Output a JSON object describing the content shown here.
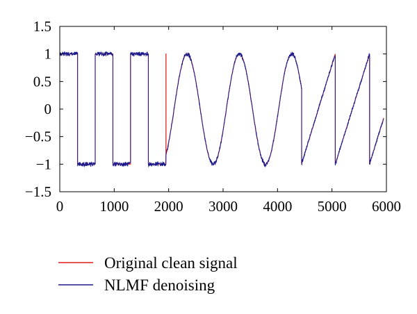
{
  "chart_data": {
    "type": "line",
    "title": "",
    "xlabel": "",
    "ylabel": "",
    "xlim": [
      0,
      6000
    ],
    "ylim": [
      -1.5,
      1.5
    ],
    "xticks": [
      0,
      1000,
      2000,
      3000,
      4000,
      5000,
      6000
    ],
    "yticks": [
      1.5,
      1,
      0.5,
      0,
      -0.5,
      -1,
      -1.5
    ],
    "xtick_labels": [
      "0",
      "1000",
      "2000",
      "3000",
      "4000",
      "5000",
      "6000"
    ],
    "ytick_labels": [
      "1.5",
      "1",
      "0.5",
      "0",
      "−0.5",
      "−1",
      "−1.5"
    ],
    "grid": false,
    "legend_position": "bottom-left, below plot",
    "signal_segments": [
      {
        "kind": "square",
        "x_start": 0,
        "x_end": 1950,
        "period": 650,
        "high_first": true,
        "amplitude": 1
      },
      {
        "kind": "sine",
        "x_start": 1950,
        "x_end": 4440,
        "period": 960,
        "peak_at": 2340,
        "amplitude": 1
      },
      {
        "kind": "sawtooth",
        "x_start": 4440,
        "x_end": 5950,
        "ramp_breaks": [
          4440,
          5060,
          5690
        ],
        "low": -1,
        "high": 1,
        "end_value": -0.18
      }
    ],
    "series": [
      {
        "name": "Original clean signal",
        "color": "#e31a1c",
        "noise": 0
      },
      {
        "name": "NLMF denoising",
        "color": "#1a1a8c",
        "noise": 0.025
      }
    ]
  }
}
